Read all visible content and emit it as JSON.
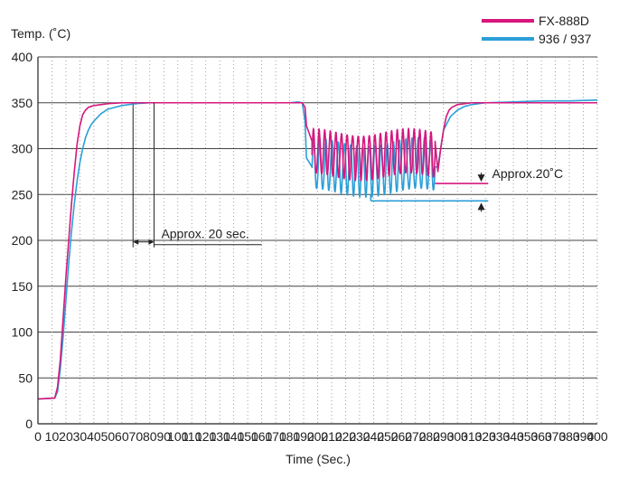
{
  "chart_data": {
    "type": "line",
    "title": "",
    "xlabel": "Time (Sec.)",
    "ylabel": "Temp. (˚C)",
    "xlim": [
      0,
      400
    ],
    "ylim": [
      0,
      400
    ],
    "x_ticks": [
      0,
      10,
      20,
      30,
      40,
      50,
      60,
      70,
      80,
      90,
      100,
      110,
      120,
      130,
      140,
      150,
      160,
      170,
      180,
      190,
      200,
      210,
      220,
      230,
      240,
      250,
      260,
      270,
      280,
      290,
      300,
      310,
      320,
      330,
      340,
      350,
      360,
      370,
      380,
      390,
      400
    ],
    "x_tick_labels": [
      "0",
      "10",
      "20",
      "30",
      "40",
      "50",
      "60",
      "70",
      "80",
      "90",
      "100",
      "110",
      "120",
      "130",
      "140",
      "150",
      "160",
      "170",
      "180",
      "190",
      "200",
      "210",
      "220",
      "230",
      "240",
      "250",
      "260",
      "270",
      "280",
      "290",
      "300",
      "310",
      "320",
      "330",
      "340",
      "350",
      "360",
      "370",
      "380",
      "390",
      "400"
    ],
    "y_ticks": [
      0,
      50,
      100,
      150,
      200,
      250,
      300,
      350,
      400
    ],
    "y_tick_labels": [
      "0",
      "50",
      "100",
      "150",
      "200",
      "250",
      "300",
      "350",
      "400"
    ],
    "grid": {
      "horizontal": "solid",
      "vertical": "dotted"
    },
    "legend_position": "top-right",
    "series": [
      {
        "name": "FX-888D",
        "color": "#d6177e",
        "x": [
          0,
          12,
          14,
          16,
          18,
          20,
          22,
          24,
          26,
          28,
          30,
          32,
          34,
          36,
          38,
          40,
          45,
          50,
          60,
          70,
          80,
          100,
          120,
          140,
          160,
          180,
          189,
          191,
          192,
          196,
          284,
          286,
          288,
          290,
          292,
          294,
          296,
          300,
          310,
          320,
          340,
          360,
          380,
          400
        ],
        "y": [
          27,
          28,
          40,
          70,
          115,
          160,
          200,
          240,
          275,
          305,
          325,
          337,
          342,
          345,
          346,
          347,
          348,
          349,
          350,
          350,
          350,
          350,
          350,
          350,
          350,
          350,
          350,
          345,
          325,
          308,
          308,
          275,
          300,
          320,
          335,
          342,
          345,
          348,
          350,
          350,
          350,
          350,
          350,
          350
        ],
        "oscillation": {
          "x_start": 196,
          "x_end": 284,
          "min": 265,
          "max": 322,
          "cycles": 22
        }
      },
      {
        "name": "936 / 937",
        "color": "#2b9fd8",
        "x": [
          0,
          12,
          14,
          16,
          18,
          20,
          22,
          24,
          26,
          28,
          30,
          32,
          34,
          36,
          38,
          40,
          45,
          50,
          60,
          70,
          80,
          100,
          120,
          140,
          160,
          180,
          186,
          189,
          191,
          192,
          196,
          284,
          286,
          290,
          295,
          300,
          305,
          310,
          320,
          340,
          360,
          380,
          400
        ],
        "y": [
          27,
          28,
          35,
          60,
          95,
          135,
          175,
          210,
          240,
          265,
          285,
          300,
          312,
          320,
          326,
          330,
          338,
          343,
          347,
          349,
          350,
          350,
          350,
          350,
          350,
          350,
          351,
          350,
          330,
          290,
          280,
          280,
          280,
          320,
          335,
          342,
          346,
          348,
          350,
          351,
          352,
          352,
          353
        ],
        "oscillation": {
          "x_start": 196,
          "x_end": 284,
          "min": 247,
          "max": 312,
          "cycles": 20
        }
      }
    ],
    "annotations": [
      {
        "label": "Approx. 20 sec.",
        "type": "time-span",
        "x_from": 68,
        "x_to": 83,
        "y": 220
      },
      {
        "label": "Approx.20˚C",
        "type": "temp-diff",
        "x": 317,
        "y_high": 262,
        "y_low": 243
      }
    ]
  }
}
